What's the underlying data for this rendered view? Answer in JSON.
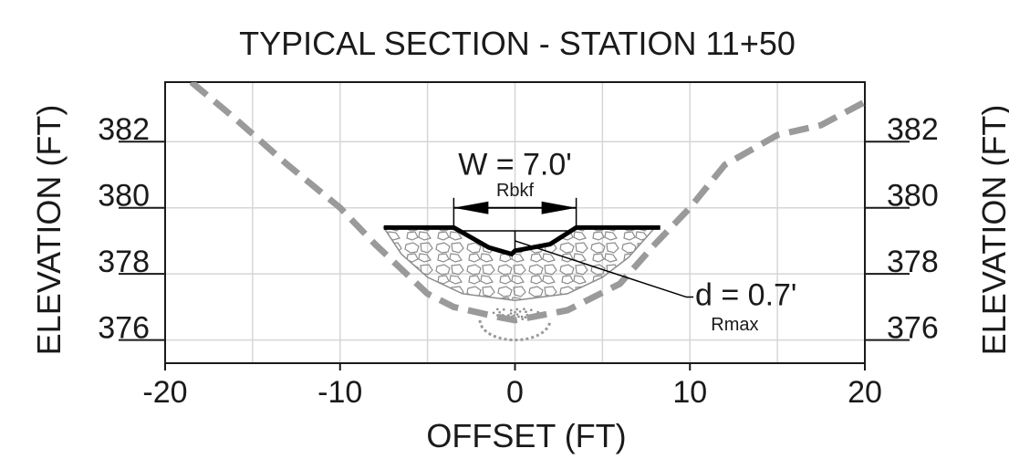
{
  "chart_data": {
    "type": "line",
    "title": "TYPICAL SECTION - STATION 11+50",
    "xlabel": "OFFSET (FT)",
    "ylabel_left": "ELEVATION (FT)",
    "ylabel_right": "ELEVATION (FT)",
    "xlim": [
      -20,
      20
    ],
    "ylim": [
      375.3,
      383.8
    ],
    "x_ticks": [
      -20,
      -10,
      0,
      10,
      20
    ],
    "y_ticks": [
      376,
      378,
      380,
      382
    ],
    "grid": true,
    "series": [
      {
        "role": "existing ground",
        "style": "dashed",
        "color": "#9a9a9a",
        "points": [
          [
            -18.5,
            383.8
          ],
          [
            -16,
            382.7
          ],
          [
            -13,
            381.3
          ],
          [
            -10,
            380
          ],
          [
            -8,
            378.9
          ],
          [
            -5,
            377.4
          ],
          [
            -3.5,
            377
          ],
          [
            -1,
            376.7
          ],
          [
            0,
            376.6
          ],
          [
            1,
            376.7
          ],
          [
            3,
            376.9
          ],
          [
            6,
            377.7
          ],
          [
            8,
            378.9
          ],
          [
            10,
            380
          ],
          [
            12,
            381.3
          ],
          [
            15,
            382.2
          ],
          [
            17.5,
            382.5
          ],
          [
            20,
            383.2
          ]
        ]
      },
      {
        "role": "proposed section",
        "style": "solid",
        "color": "#000000",
        "points": [
          [
            -7.5,
            379.4
          ],
          [
            -3.5,
            379.4
          ],
          [
            -1.5,
            378.8
          ],
          [
            -0.2,
            378.6
          ],
          [
            0,
            378.7
          ],
          [
            2,
            378.9
          ],
          [
            3.5,
            379.4
          ],
          [
            8.3,
            379.4
          ]
        ]
      }
    ],
    "annotations": {
      "width_label": "W = 7.0'",
      "width_sub": "Rbkf",
      "depth_label": "d = 0.7'",
      "depth_sub": "Rmax"
    },
    "colors": {
      "grid": "#d6d6d6",
      "ground": "#9a9a9a",
      "section": "#000000",
      "riprap": "#8c8c8c"
    }
  }
}
